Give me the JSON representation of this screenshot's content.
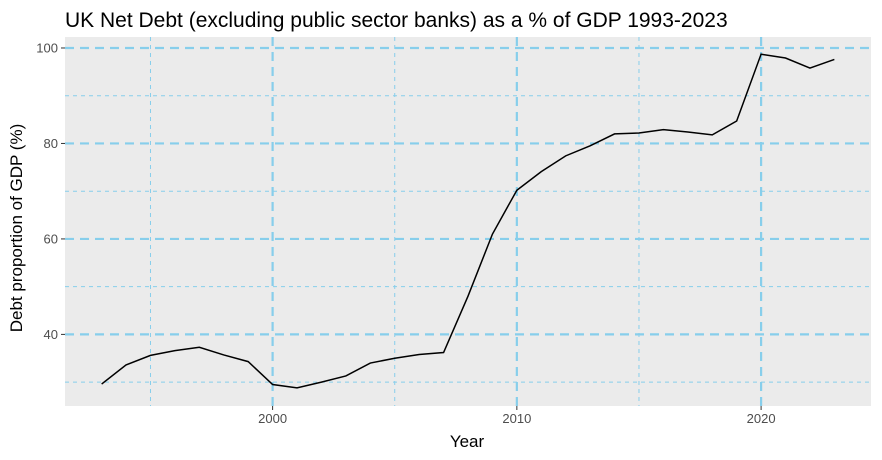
{
  "chart_data": {
    "type": "line",
    "title": "UK Net Debt (excluding public sector banks) as a % of GDP 1993-2023",
    "xlabel": "Year",
    "ylabel": "Debt proportion of GDP (%)",
    "xlim": [
      1991.5,
      2024.5
    ],
    "ylim": [
      25,
      102.3
    ],
    "x_major_ticks": [
      2000,
      2010,
      2020
    ],
    "x_minor_ticks": [
      1995,
      2005,
      2015
    ],
    "y_major_ticks": [
      40,
      60,
      80,
      100
    ],
    "y_minor_ticks": [
      30,
      50,
      70,
      90
    ],
    "grid": true,
    "legend": "none",
    "series": [
      {
        "x": [
          1993,
          1994,
          1995,
          1996,
          1997,
          1998,
          1999,
          2000,
          2001,
          2002,
          2003,
          2004,
          2005,
          2006,
          2007,
          2008,
          2009,
          2010,
          2011,
          2012,
          2013,
          2014,
          2015,
          2016,
          2017,
          2018,
          2019,
          2020,
          2021,
          2022,
          2023
        ],
        "values": [
          29.6,
          33.6,
          35.6,
          36.6,
          37.3,
          35.7,
          34.3,
          29.5,
          28.8,
          30.0,
          31.3,
          34.0,
          35.0,
          35.8,
          36.2,
          48.0,
          61.0,
          70.2,
          74.1,
          77.4,
          79.5,
          82.0,
          82.2,
          82.9,
          82.4,
          81.8,
          84.7,
          98.7,
          97.9,
          95.8,
          97.6
        ]
      }
    ],
    "colors": {
      "panel": "#ebebeb",
      "grid": "#87ceeb",
      "line": "#000000",
      "tick_label": "#4d4d4d"
    }
  }
}
